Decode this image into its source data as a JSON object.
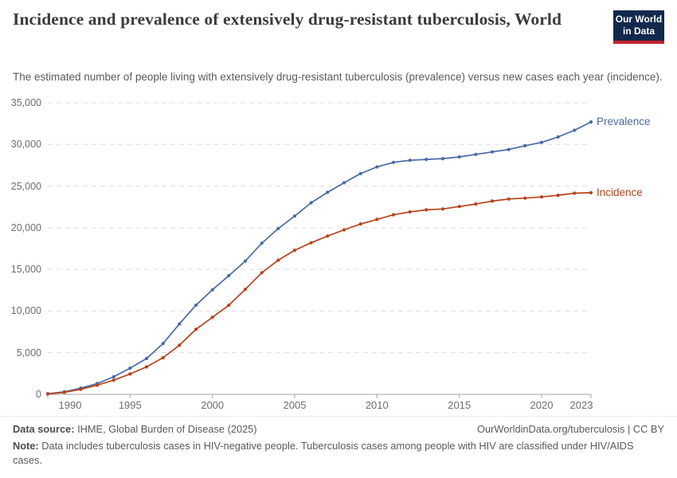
{
  "header": {
    "title": "Incidence and prevalence of extensively drug-resistant tuberculosis, World",
    "subtitle": "The estimated number of people living with extensively drug-resistant tuberculosis (prevalence) versus new cases each year (incidence).",
    "logo": {
      "line1": "Our World",
      "line2": "in Data",
      "bg_color": "#12294d",
      "stripe_color": "#c0232c"
    }
  },
  "footer": {
    "datasource_label": "Data source:",
    "datasource_value": " IHME, Global Burden of Disease (2025)",
    "link": "OurWorldinData.org/tuberculosis | CC BY",
    "note_label": "Note:",
    "note_value": " Data includes tuberculosis cases in HIV-negative people. Tuberculosis cases among people with HIV are classified under HIV/AIDS cases."
  },
  "chart_data": {
    "type": "line",
    "title": "Incidence and prevalence of extensively drug-resistant tuberculosis, World",
    "xlabel": "",
    "ylabel": "",
    "xlim": [
      1990,
      2023
    ],
    "ylim": [
      0,
      35000
    ],
    "xticks": [
      1990,
      1995,
      2000,
      2005,
      2010,
      2015,
      2020,
      2023
    ],
    "yticks": [
      0,
      5000,
      10000,
      15000,
      20000,
      25000,
      30000,
      35000
    ],
    "grid": "horizontal-dashed",
    "legend_position": "end-of-line-labels",
    "x": [
      1990,
      1991,
      1992,
      1993,
      1994,
      1995,
      1996,
      1997,
      1998,
      1999,
      2000,
      2001,
      2002,
      2003,
      2004,
      2005,
      2006,
      2007,
      2008,
      2009,
      2010,
      2011,
      2012,
      2013,
      2014,
      2015,
      2016,
      2017,
      2018,
      2019,
      2020,
      2021,
      2022,
      2023
    ],
    "series": [
      {
        "name": "Prevalence",
        "color": "#4a6aa5",
        "values": [
          80,
          300,
          750,
          1300,
          2100,
          3150,
          4300,
          6100,
          8450,
          10700,
          12550,
          14250,
          16000,
          18150,
          19900,
          21400,
          23000,
          24250,
          25400,
          26500,
          27300,
          27850,
          28100,
          28200,
          28300,
          28500,
          28800,
          29100,
          29400,
          29850,
          30250,
          30900,
          31700,
          32700
        ]
      },
      {
        "name": "Incidence",
        "color": "#b5431c",
        "values": [
          60,
          240,
          600,
          1100,
          1700,
          2450,
          3300,
          4400,
          5900,
          7800,
          9250,
          10700,
          12600,
          14600,
          16100,
          17300,
          18200,
          19000,
          19750,
          20450,
          21000,
          21550,
          21900,
          22150,
          22250,
          22550,
          22850,
          23200,
          23450,
          23550,
          23700,
          23900,
          24150,
          24200
        ]
      }
    ],
    "axis_color": "#a5a5a5",
    "grid_color": "#dcdcdc",
    "tick_text_color": "#6e6e6e"
  }
}
